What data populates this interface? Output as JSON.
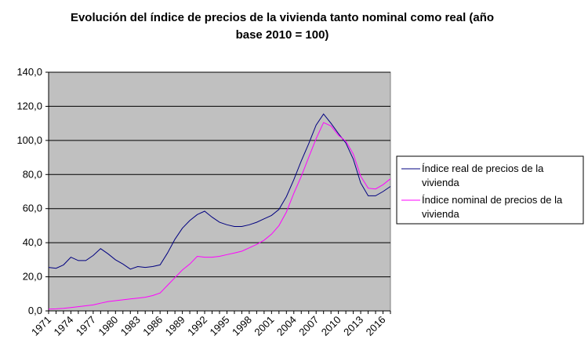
{
  "title_line1": "Evolución del índice de precios de la vivienda tanto nominal como real (año",
  "title_line2": "base 2010 = 100)",
  "chart_data": {
    "type": "line",
    "title": "Evolución del índice de precios de la vivienda tanto nominal como real (año base 2010 = 100)",
    "xlabel": "",
    "ylabel": "",
    "ylim": [
      0,
      140
    ],
    "yticks": [
      "0,0",
      "20,0",
      "40,0",
      "60,0",
      "80,0",
      "100,0",
      "120,0",
      "140,0"
    ],
    "xticks": [
      "1971",
      "1974",
      "1977",
      "1980",
      "1983",
      "1986",
      "1989",
      "1992",
      "1995",
      "1998",
      "2001",
      "2004",
      "2007",
      "2010",
      "2013",
      "2016"
    ],
    "grid": true,
    "legend_position": "right",
    "plot_background": "#c0c0c0",
    "x": [
      1971,
      1972,
      1973,
      1974,
      1975,
      1976,
      1977,
      1978,
      1979,
      1980,
      1981,
      1982,
      1983,
      1984,
      1985,
      1986,
      1987,
      1988,
      1989,
      1990,
      1991,
      1992,
      1993,
      1994,
      1995,
      1996,
      1997,
      1998,
      1999,
      2000,
      2001,
      2002,
      2003,
      2004,
      2005,
      2006,
      2007,
      2008,
      2009,
      2010,
      2011,
      2012,
      2013,
      2014,
      2015,
      2016,
      2017
    ],
    "series": [
      {
        "name": "Índice real de precios de la vivienda",
        "label_lines": [
          "Índice real de precios de la",
          "vivienda"
        ],
        "color": "#000080",
        "values": [
          25.5,
          25,
          27,
          31.5,
          29.5,
          29.5,
          32.5,
          36.5,
          33.5,
          30,
          27.5,
          24.5,
          26,
          25.5,
          26,
          27,
          34,
          42,
          48.5,
          53,
          56.5,
          58.5,
          55,
          52,
          50.5,
          49.5,
          49.5,
          50.5,
          52,
          54,
          56,
          59.5,
          67,
          77,
          88,
          98,
          109,
          115.5,
          110,
          104,
          98.5,
          89,
          75,
          67.5,
          67.5,
          70,
          73
        ]
      },
      {
        "name": "Índice nominal de precios de la vivienda",
        "label_lines": [
          "Índice nominal de precios de la",
          "vivienda"
        ],
        "color": "#ff00ff",
        "values": [
          1,
          1.2,
          1.5,
          2,
          2.5,
          3,
          3.5,
          4.5,
          5.5,
          6,
          6.5,
          7,
          7.5,
          8,
          9,
          10.5,
          15,
          19.5,
          24,
          27.5,
          32,
          31.5,
          31.5,
          32,
          33,
          34,
          35,
          37,
          39,
          41.5,
          45,
          50,
          58,
          69,
          79,
          90,
          101,
          110.5,
          108.5,
          103,
          99.5,
          92,
          79,
          72,
          71.5,
          74,
          77.5
        ]
      }
    ]
  }
}
